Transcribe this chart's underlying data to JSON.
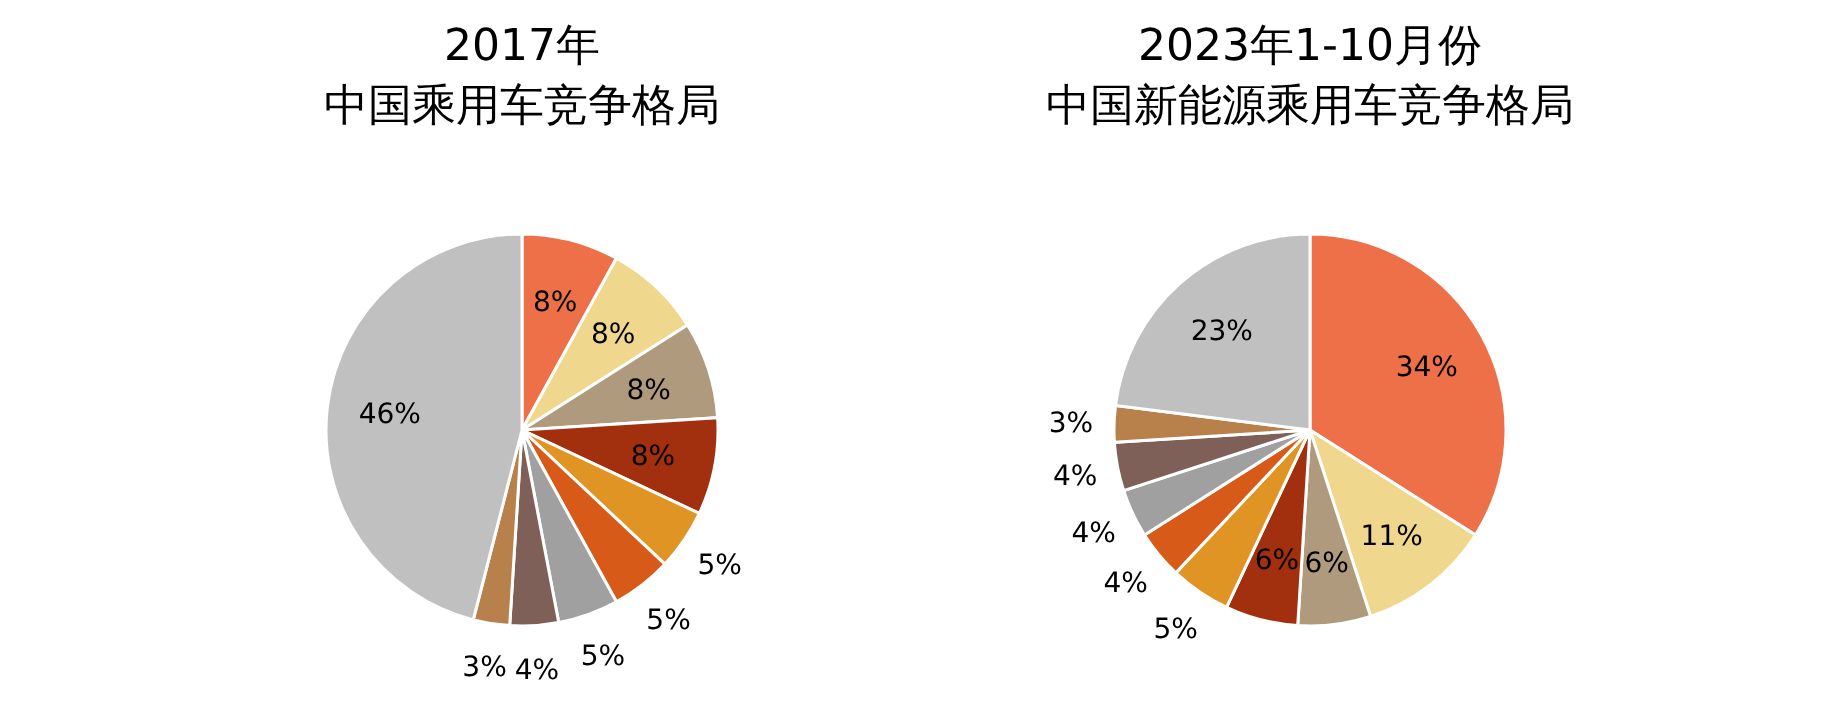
{
  "chart_data": [
    {
      "type": "pie",
      "title": "2017年",
      "subtitle": "中国乘用车竞争格局",
      "categories": [
        null,
        null,
        null,
        null,
        null,
        null,
        null,
        null,
        null,
        null
      ],
      "values": [
        8,
        8,
        8,
        8,
        5,
        5,
        5,
        4,
        3,
        46
      ],
      "value_labels": [
        "8%",
        "8%",
        "8%",
        "8%",
        "5%",
        "5%",
        "5%",
        "4%",
        "3%",
        "46%"
      ],
      "colors": [
        "#ee7048",
        "#efd78e",
        "#b09a7e",
        "#a2300e",
        "#e09424",
        "#d85a18",
        "#a0a0a0",
        "#7e6058",
        "#b8804a",
        "#c0c0c0"
      ]
    },
    {
      "type": "pie",
      "title": "2023年1-10月份",
      "subtitle": "中国新能源乘用车竞争格局",
      "categories": [
        null,
        null,
        null,
        null,
        null,
        null,
        null,
        null,
        null,
        null
      ],
      "values": [
        34,
        11,
        6,
        6,
        5,
        4,
        4,
        4,
        3,
        23
      ],
      "value_labels": [
        "34%",
        "11%",
        "6%",
        "6%",
        "5%",
        "4%",
        "4%",
        "4%",
        "3%",
        "23%"
      ],
      "colors": [
        "#ee7048",
        "#efd78e",
        "#b09a7e",
        "#a2300e",
        "#e09424",
        "#d85a18",
        "#a0a0a0",
        "#7e6058",
        "#b8804a",
        "#c0c0c0"
      ]
    }
  ]
}
